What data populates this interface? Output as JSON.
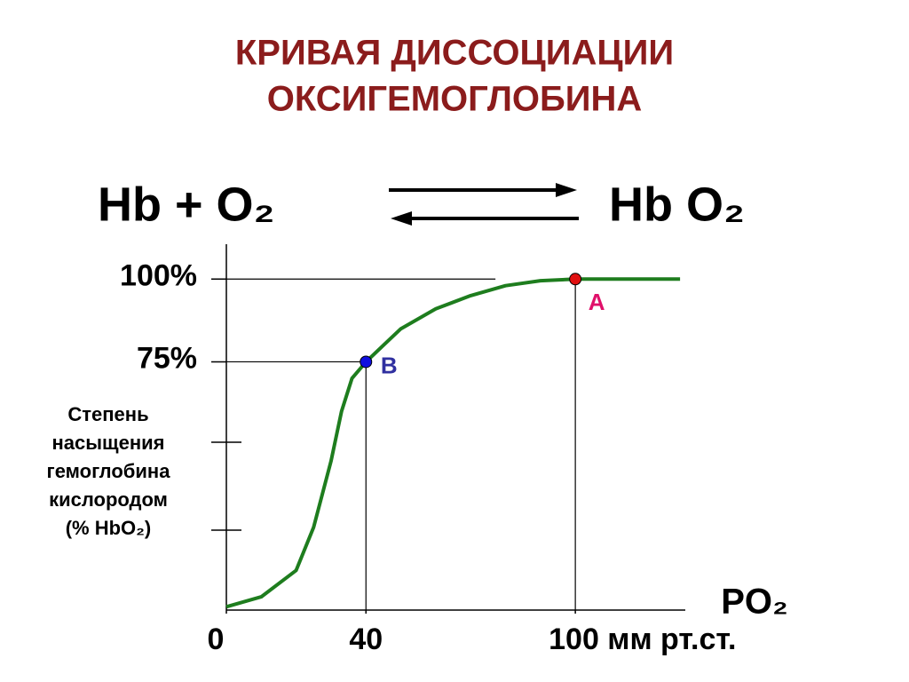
{
  "chart_data": {
    "type": "line",
    "title": [
      "КРИВАЯ ДИССОЦИАЦИИ",
      "ОКСИГЕМОГЛОБИНА"
    ],
    "equation": {
      "left": "Hb + O₂",
      "right": "Hb O₂"
    },
    "ylabel": [
      "Степень",
      "насыщения",
      "гемоглобина",
      "кислородом",
      "(% HbO₂)"
    ],
    "xlabel": "PO₂",
    "x": [
      0,
      10,
      20,
      25,
      30,
      33,
      36,
      40,
      45,
      50,
      60,
      70,
      80,
      90,
      100,
      110,
      120,
      130
    ],
    "series": [
      {
        "color": "#1e7d1e",
        "values": [
          1,
          4,
          12,
          25,
          45,
          60,
          70,
          75,
          80,
          85,
          91,
          95,
          98,
          99.5,
          100,
          100,
          100,
          100
        ]
      }
    ],
    "points": [
      {
        "label": "A",
        "x": 100,
        "y": 100,
        "color": "#e01010",
        "label_color": "#e0106a"
      },
      {
        "label": "B",
        "x": 40,
        "y": 75,
        "color": "#1010e0",
        "label_color": "#3030a0"
      }
    ],
    "xlim": [
      0,
      131
    ],
    "ylim": [
      0,
      110
    ],
    "xticks": [
      0,
      40,
      {
        "value": 100,
        "label": "100 мм рт.ст."
      }
    ],
    "yticks": [
      {
        "value": 75,
        "label": "75%"
      },
      {
        "value": 100,
        "label": "100%"
      }
    ]
  }
}
